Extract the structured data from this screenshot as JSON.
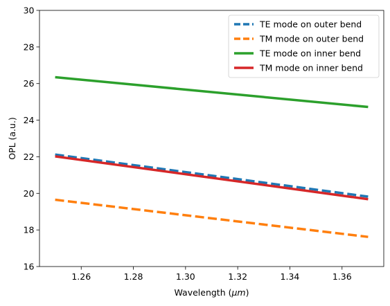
{
  "chart_data": {
    "type": "line",
    "xlabel_prefix": "Wavelength (",
    "xlabel_unit": "μm",
    "xlabel_suffix": ")",
    "ylabel": "OPL (a.u.)",
    "xlim": [
      1.244,
      1.376
    ],
    "ylim": [
      16,
      30
    ],
    "xticks": [
      1.26,
      1.28,
      1.3,
      1.32,
      1.34,
      1.36
    ],
    "xtick_labels": [
      "1.26",
      "1.28",
      "1.30",
      "1.32",
      "1.34",
      "1.36"
    ],
    "yticks": [
      16,
      18,
      20,
      22,
      24,
      26,
      28,
      30
    ],
    "ytick_labels": [
      "16",
      "18",
      "20",
      "22",
      "24",
      "26",
      "28",
      "30"
    ],
    "grid": false,
    "legend_position": "top-right",
    "x": [
      1.25,
      1.37
    ],
    "series": [
      {
        "name": "TE mode on outer bend",
        "values": [
          22.12,
          19.82
        ],
        "color": "#1f77b4",
        "style": "dashed"
      },
      {
        "name": "TM mode on outer bend",
        "values": [
          19.65,
          17.62
        ],
        "color": "#ff7f0e",
        "style": "dashed"
      },
      {
        "name": "TE mode on inner bend",
        "values": [
          26.35,
          24.72
        ],
        "color": "#2ca02c",
        "style": "solid"
      },
      {
        "name": "TM mode on inner bend",
        "values": [
          22.02,
          19.68
        ],
        "color": "#d62728",
        "style": "solid"
      }
    ]
  }
}
